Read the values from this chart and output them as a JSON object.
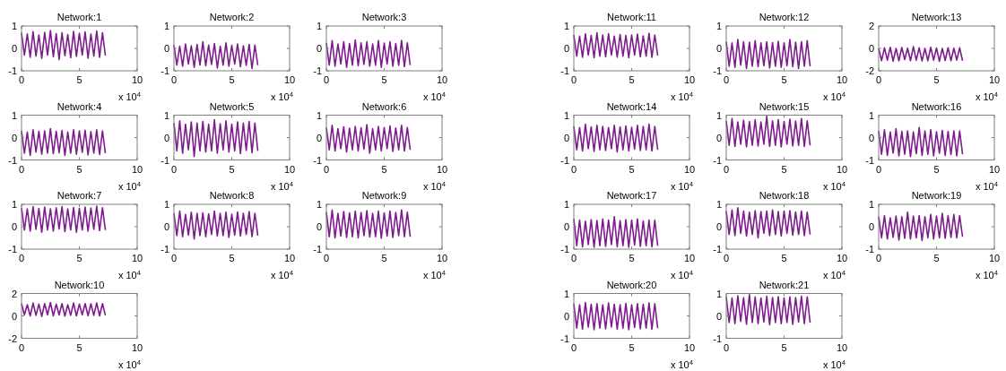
{
  "chart_data": [
    {
      "type": "line",
      "title": "Network:1",
      "x": [
        0,
        0.25,
        0.5,
        0.75,
        1,
        1.25,
        1.5,
        1.75,
        2,
        2.25,
        2.5,
        2.75,
        3,
        3.25,
        3.5,
        3.75,
        4,
        4.25,
        4.5,
        4.75,
        5,
        5.25,
        5.5,
        5.75,
        6,
        6.25,
        6.5,
        6.75,
        7,
        7.25
      ],
      "xlim": [
        0,
        10
      ],
      "xticks": [
        0,
        5,
        10
      ],
      "ylim": [
        -1,
        1
      ],
      "yticks": [
        -1,
        0,
        1
      ],
      "annotations": [
        "x 10$^{4}$"
      ],
      "series": [
        {
          "color": "#7e1a8e",
          "values": [
            0.7,
            -0.3,
            0.65,
            -0.4,
            0.75,
            -0.35,
            0.6,
            -0.45,
            0.72,
            -0.3,
            0.8,
            -0.38,
            0.66,
            -0.5,
            0.7,
            -0.33,
            0.62,
            -0.42,
            0.76,
            -0.36,
            0.68,
            -0.3,
            0.74,
            -0.44,
            0.64,
            -0.35,
            0.78,
            -0.4,
            0.7,
            -0.32
          ]
        }
      ]
    },
    {
      "type": "line",
      "title": "Network:2",
      "x": [
        0,
        0.25,
        0.5,
        0.75,
        1,
        1.25,
        1.5,
        1.75,
        2,
        2.25,
        2.5,
        2.75,
        3,
        3.25,
        3.5,
        3.75,
        4,
        4.25,
        4.5,
        4.75,
        5,
        5.25,
        5.5,
        5.75,
        6,
        6.25,
        6.5,
        6.75,
        7,
        7.25
      ],
      "xlim": [
        0,
        10
      ],
      "xticks": [
        0,
        5,
        10
      ],
      "ylim": [
        -1,
        1
      ],
      "yticks": [
        -1,
        0,
        1
      ],
      "annotations": [
        "x 10$^{4}$"
      ],
      "series": [
        {
          "color": "#7e1a8e",
          "values": [
            0.15,
            -0.75,
            0.1,
            -0.8,
            0.2,
            -0.7,
            0.12,
            -0.85,
            0.18,
            -0.75,
            0.3,
            -0.78,
            0.15,
            -0.72,
            0.22,
            -0.88,
            0.1,
            -0.75,
            0.25,
            -0.8,
            0.14,
            -0.7,
            0.2,
            -0.82,
            0.12,
            -0.76,
            0.18,
            -0.9,
            0.15,
            -0.75
          ]
        }
      ]
    },
    {
      "type": "line",
      "title": "Network:3",
      "x": [
        0,
        0.25,
        0.5,
        0.75,
        1,
        1.25,
        1.5,
        1.75,
        2,
        2.25,
        2.5,
        2.75,
        3,
        3.25,
        3.5,
        3.75,
        4,
        4.25,
        4.5,
        4.75,
        5,
        5.25,
        5.5,
        5.75,
        6,
        6.25,
        6.5,
        6.75,
        7,
        7.25
      ],
      "xlim": [
        0,
        10
      ],
      "xticks": [
        0,
        5,
        10
      ],
      "ylim": [
        -1,
        1
      ],
      "yticks": [
        -1,
        0,
        1
      ],
      "annotations": [
        "x 10$^{4}$"
      ],
      "series": [
        {
          "color": "#7e1a8e",
          "values": [
            0.25,
            -0.75,
            0.35,
            -0.8,
            0.2,
            -0.7,
            0.3,
            -0.85,
            0.22,
            -0.75,
            0.38,
            -0.78,
            0.25,
            -0.72,
            0.3,
            -0.8,
            0.2,
            -0.75,
            0.35,
            -0.85,
            0.24,
            -0.7,
            0.3,
            -0.8,
            0.22,
            -0.76,
            0.36,
            -0.82,
            0.25,
            -0.75
          ]
        }
      ]
    },
    {
      "type": "line",
      "title": "Network:4",
      "x": [
        0,
        0.25,
        0.5,
        0.75,
        1,
        1.25,
        1.5,
        1.75,
        2,
        2.25,
        2.5,
        2.75,
        3,
        3.25,
        3.5,
        3.75,
        4,
        4.25,
        4.5,
        4.75,
        5,
        5.25,
        5.5,
        5.75,
        6,
        6.25,
        6.5,
        6.75,
        7,
        7.25
      ],
      "xlim": [
        0,
        10
      ],
      "xticks": [
        0,
        5,
        10
      ],
      "ylim": [
        -1,
        1
      ],
      "yticks": [
        -1,
        0,
        1
      ],
      "annotations": [
        "x 10$^{4}$"
      ],
      "series": [
        {
          "color": "#7e1a8e",
          "values": [
            0.3,
            -0.7,
            0.25,
            -0.8,
            0.35,
            -0.65,
            0.28,
            -0.75,
            0.3,
            -0.7,
            0.4,
            -0.72,
            0.28,
            -0.68,
            0.32,
            -0.8,
            0.25,
            -0.7,
            0.35,
            -0.75,
            0.3,
            -0.66,
            0.33,
            -0.78,
            0.27,
            -0.7,
            0.35,
            -0.76,
            0.3,
            -0.7
          ]
        }
      ]
    },
    {
      "type": "line",
      "title": "Network:5",
      "x": [
        0,
        0.25,
        0.5,
        0.75,
        1,
        1.25,
        1.5,
        1.75,
        2,
        2.25,
        2.5,
        2.75,
        3,
        3.25,
        3.5,
        3.75,
        4,
        4.25,
        4.5,
        4.75,
        5,
        5.25,
        5.5,
        5.75,
        6,
        6.25,
        6.5,
        6.75,
        7,
        7.25
      ],
      "xlim": [
        0,
        10
      ],
      "xticks": [
        0,
        5,
        10
      ],
      "ylim": [
        -1,
        1
      ],
      "yticks": [
        -1,
        0,
        1
      ],
      "annotations": [
        "x 10$^{4}$"
      ],
      "series": [
        {
          "color": "#7e1a8e",
          "values": [
            0.65,
            -0.6,
            0.75,
            -0.7,
            0.6,
            -0.55,
            0.7,
            -0.85,
            0.65,
            -0.6,
            0.72,
            -0.65,
            0.6,
            -0.6,
            0.8,
            -0.7,
            0.62,
            -0.55,
            0.75,
            -0.65,
            0.6,
            -0.6,
            0.7,
            -0.72,
            0.65,
            -0.58,
            0.72,
            -0.68,
            0.65,
            -0.6
          ]
        }
      ]
    },
    {
      "type": "line",
      "title": "Network:6",
      "x": [
        0,
        0.25,
        0.5,
        0.75,
        1,
        1.25,
        1.5,
        1.75,
        2,
        2.25,
        2.5,
        2.75,
        3,
        3.25,
        3.5,
        3.75,
        4,
        4.25,
        4.5,
        4.75,
        5,
        5.25,
        5.5,
        5.75,
        6,
        6.25,
        6.5,
        6.75,
        7,
        7.25
      ],
      "xlim": [
        0,
        10
      ],
      "xticks": [
        0,
        5,
        10
      ],
      "ylim": [
        -1,
        1
      ],
      "yticks": [
        -1,
        0,
        1
      ],
      "annotations": [
        "x 10$^{4}$"
      ],
      "series": [
        {
          "color": "#7e1a8e",
          "values": [
            0.45,
            -0.55,
            0.55,
            -0.6,
            0.4,
            -0.5,
            0.48,
            -0.65,
            0.42,
            -0.55,
            0.5,
            -0.6,
            0.44,
            -0.52,
            0.58,
            -0.7,
            0.4,
            -0.55,
            0.5,
            -0.6,
            0.45,
            -0.5,
            0.52,
            -0.62,
            0.43,
            -0.55,
            0.55,
            -0.6,
            0.45,
            -0.55
          ]
        }
      ]
    },
    {
      "type": "line",
      "title": "Network:7",
      "x": [
        0,
        0.25,
        0.5,
        0.75,
        1,
        1.25,
        1.5,
        1.75,
        2,
        2.25,
        2.5,
        2.75,
        3,
        3.25,
        3.5,
        3.75,
        4,
        4.25,
        4.5,
        4.75,
        5,
        5.25,
        5.5,
        5.75,
        6,
        6.25,
        6.5,
        6.75,
        7,
        7.25
      ],
      "xlim": [
        0,
        10
      ],
      "xticks": [
        0,
        5,
        10
      ],
      "ylim": [
        -1,
        1
      ],
      "yticks": [
        -1,
        0,
        1
      ],
      "annotations": [
        "x 10$^{4}$"
      ],
      "series": [
        {
          "color": "#7e1a8e",
          "values": [
            0.85,
            -0.15,
            0.8,
            -0.2,
            0.9,
            -0.12,
            0.82,
            -0.25,
            0.88,
            -0.15,
            0.8,
            -0.2,
            0.85,
            -0.1,
            0.9,
            -0.22,
            0.8,
            -0.15,
            0.86,
            -0.25,
            0.82,
            -0.15,
            0.88,
            -0.2,
            0.84,
            -0.12,
            0.92,
            -0.18,
            0.85,
            -0.15
          ]
        }
      ]
    },
    {
      "type": "line",
      "title": "Network:8",
      "x": [
        0,
        0.25,
        0.5,
        0.75,
        1,
        1.25,
        1.5,
        1.75,
        2,
        2.25,
        2.5,
        2.75,
        3,
        3.25,
        3.5,
        3.75,
        4,
        4.25,
        4.5,
        4.75,
        5,
        5.25,
        5.5,
        5.75,
        6,
        6.25,
        6.5,
        6.75,
        7,
        7.25
      ],
      "xlim": [
        0,
        10
      ],
      "xticks": [
        0,
        5,
        10
      ],
      "ylim": [
        -1,
        1
      ],
      "yticks": [
        -1,
        0,
        1
      ],
      "annotations": [
        "x 10$^{4}$"
      ],
      "series": [
        {
          "color": "#7e1a8e",
          "values": [
            0.6,
            -0.4,
            0.7,
            -0.45,
            0.55,
            -0.38,
            0.65,
            -0.55,
            0.6,
            -0.4,
            0.62,
            -0.45,
            0.58,
            -0.35,
            0.7,
            -0.42,
            0.6,
            -0.4,
            0.65,
            -0.48,
            0.56,
            -0.38,
            0.66,
            -0.42,
            0.6,
            -0.35,
            0.68,
            -0.45,
            0.6,
            -0.4
          ]
        }
      ]
    },
    {
      "type": "line",
      "title": "Network:9",
      "x": [
        0,
        0.25,
        0.5,
        0.75,
        1,
        1.25,
        1.5,
        1.75,
        2,
        2.25,
        2.5,
        2.75,
        3,
        3.25,
        3.5,
        3.75,
        4,
        4.25,
        4.5,
        4.75,
        5,
        5.25,
        5.5,
        5.75,
        6,
        6.25,
        6.5,
        6.75,
        7,
        7.25
      ],
      "xlim": [
        0,
        10
      ],
      "xticks": [
        0,
        5,
        10
      ],
      "ylim": [
        -1,
        1
      ],
      "yticks": [
        -1,
        0,
        1
      ],
      "annotations": [
        "x 10$^{4}$"
      ],
      "series": [
        {
          "color": "#7e1a8e",
          "values": [
            0.65,
            -0.45,
            0.75,
            -0.5,
            0.6,
            -0.42,
            0.68,
            -0.48,
            0.62,
            -0.45,
            0.7,
            -0.5,
            0.64,
            -0.4,
            0.72,
            -0.46,
            0.6,
            -0.45,
            0.7,
            -0.52,
            0.62,
            -0.42,
            0.7,
            -0.48,
            0.64,
            -0.4,
            0.75,
            -0.45,
            0.65,
            -0.45
          ]
        }
      ]
    },
    {
      "type": "line",
      "title": "Network:10",
      "x": [
        0,
        0.25,
        0.5,
        0.75,
        1,
        1.25,
        1.5,
        1.75,
        2,
        2.25,
        2.5,
        2.75,
        3,
        3.25,
        3.5,
        3.75,
        4,
        4.25,
        4.5,
        4.75,
        5,
        5.25,
        5.5,
        5.75,
        6,
        6.25,
        6.5,
        6.75,
        7,
        7.25
      ],
      "xlim": [
        0,
        10
      ],
      "xticks": [
        0,
        5,
        10
      ],
      "ylim": [
        -2,
        2
      ],
      "yticks": [
        -2,
        0,
        2
      ],
      "annotations": [
        "x 10$^{4}$"
      ],
      "series": [
        {
          "color": "#7e1a8e",
          "values": [
            1.1,
            0.1,
            1.0,
            0.0,
            1.15,
            0.05,
            1.05,
            -0.05,
            1.1,
            0.1,
            1.2,
            0.0,
            1.05,
            0.08,
            1.1,
            -0.02,
            1.0,
            0.05,
            1.15,
            0.0,
            1.05,
            0.1,
            1.1,
            0.02,
            1.08,
            0.05,
            1.15,
            0.0,
            1.1,
            0.05
          ]
        }
      ]
    },
    {
      "type": "line",
      "title": "Network:11",
      "x": [
        0,
        0.25,
        0.5,
        0.75,
        1,
        1.25,
        1.5,
        1.75,
        2,
        2.25,
        2.5,
        2.75,
        3,
        3.25,
        3.5,
        3.75,
        4,
        4.25,
        4.5,
        4.75,
        5,
        5.25,
        5.5,
        5.75,
        6,
        6.25,
        6.5,
        6.75,
        7,
        7.25
      ],
      "xlim": [
        0,
        10
      ],
      "xticks": [
        0,
        5,
        10
      ],
      "ylim": [
        -1,
        1
      ],
      "yticks": [
        -1,
        0,
        1
      ],
      "annotations": [
        "x 10$^{4}$"
      ],
      "series": [
        {
          "color": "#7e1a8e",
          "values": [
            0.6,
            -0.35,
            0.55,
            -0.4,
            0.65,
            -0.3,
            0.58,
            -0.42,
            0.7,
            -0.35,
            0.6,
            -0.38,
            0.66,
            -0.3,
            0.55,
            -0.4,
            0.62,
            -0.35,
            0.58,
            -0.42,
            0.6,
            -0.3,
            0.64,
            -0.38,
            0.56,
            -0.35,
            0.68,
            -0.4,
            0.6,
            -0.32
          ]
        }
      ]
    },
    {
      "type": "line",
      "title": "Network:12",
      "x": [
        0,
        0.25,
        0.5,
        0.75,
        1,
        1.25,
        1.5,
        1.75,
        2,
        2.25,
        2.5,
        2.75,
        3,
        3.25,
        3.5,
        3.75,
        4,
        4.25,
        4.5,
        4.75,
        5,
        5.25,
        5.5,
        5.75,
        6,
        6.25,
        6.5,
        6.75,
        7,
        7.25
      ],
      "xlim": [
        0,
        10
      ],
      "xticks": [
        0,
        5,
        10
      ],
      "ylim": [
        -1,
        1
      ],
      "yticks": [
        -1,
        0,
        1
      ],
      "annotations": [
        "x 10$^{4}$"
      ],
      "series": [
        {
          "color": "#7e1a8e",
          "values": [
            0.3,
            -0.8,
            0.25,
            -0.85,
            0.4,
            -0.75,
            0.3,
            -0.9,
            0.28,
            -0.8,
            0.35,
            -0.82,
            0.25,
            -0.78,
            0.3,
            -0.88,
            0.26,
            -0.8,
            0.32,
            -0.85,
            0.25,
            -0.78,
            0.4,
            -0.82,
            0.28,
            -0.9,
            0.3,
            -0.8,
            0.35,
            -0.8
          ]
        }
      ]
    },
    {
      "type": "line",
      "title": "Network:13",
      "x": [
        0,
        0.25,
        0.5,
        0.75,
        1,
        1.25,
        1.5,
        1.75,
        2,
        2.25,
        2.5,
        2.75,
        3,
        3.25,
        3.5,
        3.75,
        4,
        4.25,
        4.5,
        4.75,
        5,
        5.25,
        5.5,
        5.75,
        6,
        6.25,
        6.5,
        6.75,
        7,
        7.25
      ],
      "xlim": [
        0,
        10
      ],
      "xticks": [
        0,
        5,
        10
      ],
      "ylim": [
        -2,
        2
      ],
      "yticks": [
        -2,
        0,
        2
      ],
      "annotations": [
        "x 10$^{4}$"
      ],
      "series": [
        {
          "color": "#7e1a8e",
          "values": [
            0.0,
            -1.1,
            0.05,
            -1.05,
            0.1,
            -1.15,
            0.0,
            -1.1,
            0.08,
            -1.0,
            0.02,
            -1.1,
            0.15,
            -1.05,
            0.05,
            -1.12,
            0.0,
            -1.1,
            0.1,
            -1.05,
            0.04,
            -1.15,
            0.0,
            -1.08,
            0.06,
            -1.1,
            0.02,
            -1.05,
            0.05,
            -1.1
          ]
        }
      ]
    },
    {
      "type": "line",
      "title": "Network:14",
      "x": [
        0,
        0.25,
        0.5,
        0.75,
        1,
        1.25,
        1.5,
        1.75,
        2,
        2.25,
        2.5,
        2.75,
        3,
        3.25,
        3.5,
        3.75,
        4,
        4.25,
        4.5,
        4.75,
        5,
        5.25,
        5.5,
        5.75,
        6,
        6.25,
        6.5,
        6.75,
        7,
        7.25
      ],
      "xlim": [
        0,
        10
      ],
      "xticks": [
        0,
        5,
        10
      ],
      "ylim": [
        -1,
        1
      ],
      "yticks": [
        -1,
        0,
        1
      ],
      "annotations": [
        "x 10$^{4}$"
      ],
      "series": [
        {
          "color": "#7e1a8e",
          "values": [
            0.5,
            -0.55,
            0.45,
            -0.6,
            0.6,
            -0.5,
            0.48,
            -0.62,
            0.55,
            -0.55,
            0.5,
            -0.58,
            0.45,
            -0.5,
            0.55,
            -0.65,
            0.48,
            -0.55,
            0.52,
            -0.6,
            0.46,
            -0.52,
            0.55,
            -0.58,
            0.5,
            -0.55,
            0.6,
            -0.6,
            0.5,
            -0.55
          ]
        }
      ]
    },
    {
      "type": "line",
      "title": "Network:15",
      "x": [
        0,
        0.25,
        0.5,
        0.75,
        1,
        1.25,
        1.5,
        1.75,
        2,
        2.25,
        2.5,
        2.75,
        3,
        3.25,
        3.5,
        3.75,
        4,
        4.25,
        4.5,
        4.75,
        5,
        5.25,
        5.5,
        5.75,
        6,
        6.25,
        6.5,
        6.75,
        7,
        7.25
      ],
      "xlim": [
        0,
        10
      ],
      "xticks": [
        0,
        5,
        10
      ],
      "ylim": [
        -1,
        1
      ],
      "yticks": [
        -1,
        0,
        1
      ],
      "annotations": [
        "x 10$^{4}$"
      ],
      "series": [
        {
          "color": "#7e1a8e",
          "values": [
            0.75,
            -0.35,
            0.85,
            -0.4,
            0.7,
            -0.3,
            0.78,
            -0.42,
            0.72,
            -0.35,
            0.8,
            -0.38,
            0.7,
            -0.3,
            0.95,
            -0.4,
            0.75,
            -0.35,
            0.8,
            -0.42,
            0.72,
            -0.3,
            0.82,
            -0.38,
            0.74,
            -0.35,
            0.85,
            -0.4,
            0.75,
            -0.35
          ]
        }
      ]
    },
    {
      "type": "line",
      "title": "Network:16",
      "x": [
        0,
        0.25,
        0.5,
        0.75,
        1,
        1.25,
        1.5,
        1.75,
        2,
        2.25,
        2.5,
        2.75,
        3,
        3.25,
        3.5,
        3.75,
        4,
        4.25,
        4.5,
        4.75,
        5,
        5.25,
        5.5,
        5.75,
        6,
        6.25,
        6.5,
        6.75,
        7,
        7.25
      ],
      "xlim": [
        0,
        10
      ],
      "xticks": [
        0,
        5,
        10
      ],
      "ylim": [
        -1,
        1
      ],
      "yticks": [
        -1,
        0,
        1
      ],
      "annotations": [
        "x 10$^{4}$"
      ],
      "series": [
        {
          "color": "#7e1a8e",
          "values": [
            0.3,
            -0.75,
            0.35,
            -0.8,
            0.25,
            -0.7,
            0.4,
            -0.82,
            0.28,
            -0.75,
            0.3,
            -0.85,
            0.25,
            -0.72,
            0.45,
            -0.8,
            0.3,
            -0.75,
            0.35,
            -0.82,
            0.26,
            -0.7,
            0.32,
            -0.8,
            0.28,
            -0.76,
            0.3,
            -0.82,
            0.3,
            -0.75
          ]
        }
      ]
    },
    {
      "type": "line",
      "title": "Network:17",
      "x": [
        0,
        0.25,
        0.5,
        0.75,
        1,
        1.25,
        1.5,
        1.75,
        2,
        2.25,
        2.5,
        2.75,
        3,
        3.25,
        3.5,
        3.75,
        4,
        4.25,
        4.5,
        4.75,
        5,
        5.25,
        5.5,
        5.75,
        6,
        6.25,
        6.5,
        6.75,
        7,
        7.25
      ],
      "xlim": [
        0,
        10
      ],
      "xticks": [
        0,
        5,
        10
      ],
      "ylim": [
        -1,
        1
      ],
      "yticks": [
        -1,
        0,
        1
      ],
      "annotations": [
        "x 10$^{4}$"
      ],
      "series": [
        {
          "color": "#7e1a8e",
          "values": [
            0.35,
            -0.85,
            0.3,
            -0.9,
            0.25,
            -0.8,
            0.32,
            -0.92,
            0.28,
            -0.85,
            0.35,
            -0.88,
            0.3,
            -0.8,
            0.45,
            -0.9,
            0.28,
            -0.85,
            0.32,
            -0.92,
            0.3,
            -0.82,
            0.35,
            -0.88,
            0.26,
            -0.85,
            0.3,
            -0.9,
            0.3,
            -0.85
          ]
        }
      ]
    },
    {
      "type": "line",
      "title": "Network:18",
      "x": [
        0,
        0.25,
        0.5,
        0.75,
        1,
        1.25,
        1.5,
        1.75,
        2,
        2.25,
        2.5,
        2.75,
        3,
        3.25,
        3.5,
        3.75,
        4,
        4.25,
        4.5,
        4.75,
        5,
        5.25,
        5.5,
        5.75,
        6,
        6.25,
        6.5,
        6.75,
        7,
        7.25
      ],
      "xlim": [
        0,
        10
      ],
      "xticks": [
        0,
        5,
        10
      ],
      "ylim": [
        -1,
        1
      ],
      "yticks": [
        -1,
        0,
        1
      ],
      "annotations": [
        "x 10$^{4}$"
      ],
      "series": [
        {
          "color": "#7e1a8e",
          "values": [
            0.7,
            -0.35,
            0.75,
            -0.4,
            0.85,
            -0.3,
            0.7,
            -0.42,
            0.65,
            -0.35,
            0.72,
            -0.5,
            0.68,
            -0.3,
            0.7,
            -0.4,
            0.75,
            -0.35,
            0.68,
            -0.42,
            0.7,
            -0.3,
            0.72,
            -0.38,
            0.66,
            -0.35,
            0.7,
            -0.4,
            0.65,
            -0.35
          ]
        }
      ]
    },
    {
      "type": "line",
      "title": "Network:19",
      "x": [
        0,
        0.25,
        0.5,
        0.75,
        1,
        1.25,
        1.5,
        1.75,
        2,
        2.25,
        2.5,
        2.75,
        3,
        3.25,
        3.5,
        3.75,
        4,
        4.25,
        4.5,
        4.75,
        5,
        5.25,
        5.5,
        5.75,
        6,
        6.25,
        6.5,
        6.75,
        7,
        7.25
      ],
      "xlim": [
        0,
        10
      ],
      "xticks": [
        0,
        5,
        10
      ],
      "ylim": [
        -1,
        1
      ],
      "yticks": [
        -1,
        0,
        1
      ],
      "annotations": [
        "x 10$^{4}$"
      ],
      "series": [
        {
          "color": "#7e1a8e",
          "values": [
            0.45,
            -0.5,
            0.5,
            -0.55,
            0.4,
            -0.48,
            0.48,
            -0.6,
            0.45,
            -0.52,
            0.65,
            -0.55,
            0.48,
            -0.5,
            0.5,
            -0.62,
            0.45,
            -0.5,
            0.55,
            -0.55,
            0.48,
            -0.5,
            0.6,
            -0.52,
            0.5,
            -0.48,
            0.55,
            -0.5,
            0.5,
            -0.45
          ]
        }
      ]
    },
    {
      "type": "line",
      "title": "Network:20",
      "x": [
        0,
        0.25,
        0.5,
        0.75,
        1,
        1.25,
        1.5,
        1.75,
        2,
        2.25,
        2.5,
        2.75,
        3,
        3.25,
        3.5,
        3.75,
        4,
        4.25,
        4.5,
        4.75,
        5,
        5.25,
        5.5,
        5.75,
        6,
        6.25,
        6.5,
        6.75,
        7,
        7.25
      ],
      "xlim": [
        0,
        10
      ],
      "xticks": [
        0,
        5,
        10
      ],
      "ylim": [
        -1,
        1
      ],
      "yticks": [
        -1,
        0,
        1
      ],
      "annotations": [
        "x 10$^{4}$"
      ],
      "series": [
        {
          "color": "#7e1a8e",
          "values": [
            0.55,
            -0.55,
            0.5,
            -0.6,
            0.6,
            -0.5,
            0.52,
            -0.62,
            0.55,
            -0.55,
            0.5,
            -0.58,
            0.58,
            -0.5,
            0.52,
            -0.6,
            0.5,
            -0.55,
            0.56,
            -0.62,
            0.5,
            -0.52,
            0.55,
            -0.58,
            0.52,
            -0.55,
            0.58,
            -0.6,
            0.55,
            -0.55
          ]
        }
      ]
    },
    {
      "type": "line",
      "title": "Network:21",
      "x": [
        0,
        0.25,
        0.5,
        0.75,
        1,
        1.25,
        1.5,
        1.75,
        2,
        2.25,
        2.5,
        2.75,
        3,
        3.25,
        3.5,
        3.75,
        4,
        4.25,
        4.5,
        4.75,
        5,
        5.25,
        5.5,
        5.75,
        6,
        6.25,
        6.5,
        6.75,
        7,
        7.25
      ],
      "xlim": [
        0,
        10
      ],
      "xticks": [
        0,
        5,
        10
      ],
      "ylim": [
        -1,
        1
      ],
      "yticks": [
        -1,
        0,
        1
      ],
      "annotations": [
        "x 10$^{4}$"
      ],
      "series": [
        {
          "color": "#7e1a8e",
          "values": [
            0.85,
            -0.3,
            0.8,
            -0.35,
            0.9,
            -0.25,
            0.82,
            -0.38,
            0.95,
            -0.3,
            0.85,
            -0.35,
            0.8,
            -0.28,
            0.88,
            -0.4,
            0.82,
            -0.3,
            0.86,
            -0.35,
            0.8,
            -0.3,
            0.85,
            -0.38,
            0.82,
            -0.28,
            0.88,
            -0.35,
            0.85,
            -0.3
          ]
        }
      ]
    }
  ]
}
